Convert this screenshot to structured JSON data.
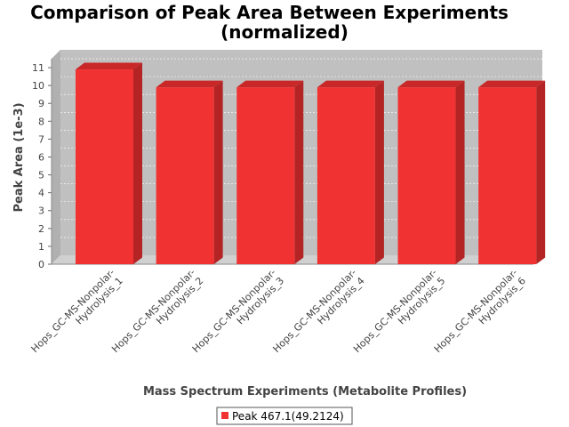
{
  "chart_data": {
    "type": "bar",
    "title_line1": "Comparison of Peak Area Between Experiments",
    "title_line2": "(normalized)",
    "xlabel": "Mass Spectrum Experiments (Metabolite Profiles)",
    "ylabel": "Peak Area (1e-3)",
    "categories": [
      [
        "Hops_GC-MS-Nonpolar-",
        "Hydrolysis_1"
      ],
      [
        "Hops_GC-MS-Nonpolar-",
        "Hydrolysis_2"
      ],
      [
        "Hops_GC-MS-Nonpolar-",
        "Hydrolysis_3"
      ],
      [
        "Hops_GC-MS-Nonpolar-",
        "Hydrolysis_4"
      ],
      [
        "Hops_GC-MS-Nonpolar-",
        "Hydrolysis_5"
      ],
      [
        "Hops_GC-MS-Nonpolar-",
        "Hydrolysis_6"
      ]
    ],
    "series": [
      {
        "name": "Peak 467.1(49.2124)",
        "values": [
          10.9,
          9.9,
          9.9,
          9.9,
          9.9,
          9.9
        ]
      }
    ],
    "ylim": [
      0,
      11.5
    ],
    "yticks": [
      0,
      1,
      2,
      3,
      4,
      5,
      6,
      7,
      8,
      9,
      10,
      11
    ],
    "grid": true,
    "legend_position": "bottom",
    "colors": {
      "bar_front": "#f03232",
      "bar_top": "#c82828",
      "bar_side": "#b42424",
      "plot_back": "#c0c0c0",
      "plot_floor": "#d0d0d0",
      "plot_wall": "#b0b0b0"
    }
  }
}
